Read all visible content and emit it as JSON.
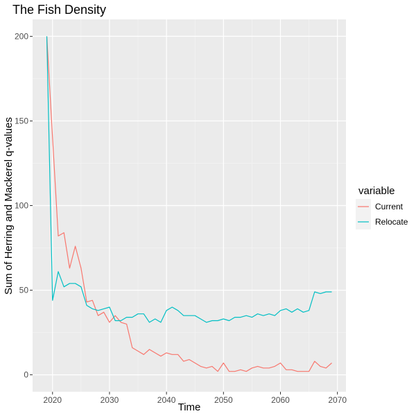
{
  "chart_data": {
    "type": "line",
    "title": "The Fish Density",
    "xlabel": "Time",
    "ylabel": "Sum of Herring and Mackerel q-values",
    "xlim": [
      2016.5,
      2071.5
    ],
    "ylim": [
      -10,
      210
    ],
    "x_ticks": [
      2020,
      2030,
      2040,
      2050,
      2060,
      2070
    ],
    "y_ticks": [
      0,
      50,
      100,
      150,
      200
    ],
    "x_tick_labels": [
      "2020",
      "2030",
      "2040",
      "2050",
      "2060",
      "2070"
    ],
    "y_tick_labels": [
      "0",
      "50",
      "100",
      "150",
      "200"
    ],
    "grid": true,
    "panel_background": "#ebebeb",
    "legend": {
      "title": "variable",
      "position": "right"
    },
    "x": [
      2019,
      2020,
      2021,
      2022,
      2023,
      2024,
      2025,
      2026,
      2027,
      2028,
      2029,
      2030,
      2031,
      2032,
      2033,
      2034,
      2035,
      2036,
      2037,
      2038,
      2039,
      2040,
      2041,
      2042,
      2043,
      2044,
      2045,
      2046,
      2047,
      2048,
      2049,
      2050,
      2051,
      2052,
      2053,
      2054,
      2055,
      2056,
      2057,
      2058,
      2059,
      2060,
      2061,
      2062,
      2063,
      2064,
      2065,
      2066,
      2067,
      2068,
      2069
    ],
    "series": [
      {
        "name": "Current",
        "color": "#f8766d",
        "values": [
          200,
          140,
          82,
          84,
          63,
          76,
          63,
          43,
          44,
          35,
          37,
          31,
          35,
          31,
          30,
          16,
          14,
          12,
          15,
          13,
          11,
          13,
          12,
          12,
          8,
          9,
          7,
          5,
          4,
          5,
          2,
          7,
          2,
          2,
          3,
          2,
          4,
          5,
          4,
          4,
          5,
          7,
          3,
          3,
          2,
          2,
          2,
          8,
          5,
          4,
          7
        ]
      },
      {
        "name": "Relocate",
        "color": "#00bfc4",
        "values": [
          200,
          44,
          61,
          52,
          54,
          54,
          52,
          41,
          39,
          38,
          39,
          40,
          32,
          32,
          34,
          34,
          36,
          36,
          31,
          33,
          31,
          38,
          40,
          38,
          35,
          35,
          35,
          33,
          31,
          32,
          32,
          33,
          32,
          34,
          34,
          35,
          34,
          36,
          35,
          36,
          35,
          38,
          39,
          37,
          39,
          37,
          38,
          49,
          48,
          49,
          49
        ]
      }
    ]
  }
}
